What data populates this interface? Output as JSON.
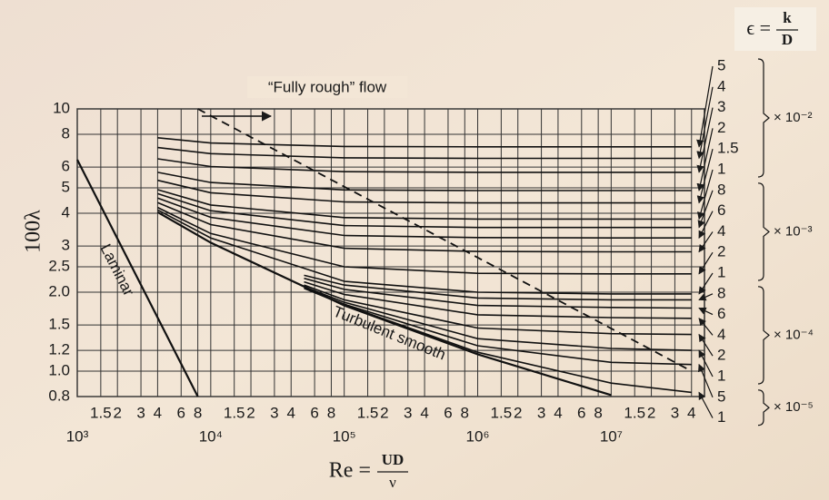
{
  "chart_data": {
    "type": "line",
    "y_label": "100λ",
    "x_label": {
      "lhs": "Re =",
      "num": "UD",
      "den": "ν"
    },
    "epsilon_label": {
      "lhs": "ϵ =",
      "num": "k",
      "den": "D"
    },
    "xscale": "log",
    "yscale": "log",
    "grid": true,
    "xlim": [
      1000,
      50000000
    ],
    "ylim": [
      0.8,
      10
    ],
    "yticks": [
      0.8,
      {
        "value": 1,
        "label": "1.0"
      },
      1.2,
      1.5,
      {
        "value": 2,
        "label": "2.0"
      },
      2.5,
      3,
      4,
      5,
      6,
      8,
      10
    ],
    "xticks": [
      {
        "value": 1000,
        "label": "10³"
      },
      {
        "value": 1500,
        "label": "1.5"
      },
      {
        "value": 2000,
        "label": "2"
      },
      {
        "value": 3000,
        "label": "3"
      },
      {
        "value": 4000,
        "label": "4"
      },
      {
        "value": 6000,
        "label": "6"
      },
      {
        "value": 8000,
        "label": "8"
      },
      {
        "value": 10000,
        "label": "10⁴"
      },
      {
        "value": 15000,
        "label": "1.5"
      },
      {
        "value": 20000,
        "label": "2"
      },
      {
        "value": 30000,
        "label": "3"
      },
      {
        "value": 40000,
        "label": "4"
      },
      {
        "value": 60000,
        "label": "6"
      },
      {
        "value": 80000,
        "label": "8"
      },
      {
        "value": 100000,
        "label": "10⁵"
      },
      {
        "value": 150000,
        "label": "1.5"
      },
      {
        "value": 200000,
        "label": "2"
      },
      {
        "value": 300000,
        "label": "3"
      },
      {
        "value": 400000,
        "label": "4"
      },
      {
        "value": 600000,
        "label": "6"
      },
      {
        "value": 800000,
        "label": "8"
      },
      {
        "value": 1000000,
        "label": "10⁶"
      },
      {
        "value": 1500000,
        "label": "1.5"
      },
      {
        "value": 2000000,
        "label": "2"
      },
      {
        "value": 3000000,
        "label": "3"
      },
      {
        "value": 4000000,
        "label": "4"
      },
      {
        "value": 6000000,
        "label": "6"
      },
      {
        "value": 8000000,
        "label": "8"
      },
      {
        "value": 10000000,
        "label": "10⁷"
      },
      {
        "value": 15000000,
        "label": "1.5"
      },
      {
        "value": 20000000,
        "label": "2"
      },
      {
        "value": 30000000,
        "label": "3"
      },
      {
        "value": 40000000,
        "label": "4"
      }
    ],
    "laminar": {
      "label": "Laminar",
      "x": [
        1000,
        8000
      ],
      "values": [
        6.4,
        0.8
      ]
    },
    "smooth": {
      "label": "Turbulent smooth",
      "x": [
        4000,
        10000,
        100000,
        1000000,
        10000000
      ],
      "values": [
        4.04,
        3.09,
        1.78,
        1.16,
        0.81
      ]
    },
    "rough_boundary": {
      "label": "“Fully rough” flow",
      "x": [
        8000,
        40000000
      ],
      "values": [
        10,
        1.0
      ]
    },
    "groups": [
      {
        "scale": "× 10⁻²",
        "x": [
          4000,
          10000,
          100000,
          1000000,
          10000000,
          40000000
        ],
        "series": [
          {
            "name": "5",
            "values": [
              7.76,
              7.41,
              7.19,
              7.17,
              7.17,
              7.17
            ]
          },
          {
            "name": "4",
            "values": [
              7.12,
              6.75,
              6.51,
              6.48,
              6.48,
              6.48
            ]
          },
          {
            "name": "3",
            "values": [
              6.45,
              6.03,
              5.76,
              5.73,
              5.73,
              5.73
            ]
          },
          {
            "name": "2",
            "values": [
              5.73,
              5.24,
              4.91,
              4.88,
              4.88,
              4.88
            ]
          },
          {
            "name": "1.5",
            "values": [
              5.34,
              4.79,
              4.42,
              4.38,
              4.38,
              4.38
            ]
          },
          {
            "name": "1",
            "values": [
              4.92,
              4.3,
              3.85,
              3.8,
              3.8,
              3.8
            ]
          }
        ]
      },
      {
        "scale": "× 10⁻³",
        "x": [
          4000,
          10000,
          100000,
          1000000,
          10000000,
          40000000
        ],
        "series": [
          {
            "name": "8",
            "values": [
              4.75,
              4.09,
              3.59,
              3.53,
              3.53,
              3.53
            ]
          },
          {
            "name": "6",
            "values": [
              4.57,
              3.86,
              3.29,
              3.23,
              3.22,
              3.22
            ]
          },
          {
            "name": "4",
            "values": [
              4.39,
              3.62,
              2.94,
              2.86,
              2.85,
              2.85
            ]
          },
          {
            "name": "2",
            "values": [
              4.21,
              3.35,
              2.5,
              2.36,
              2.35,
              2.35
            ]
          },
          {
            "name": "1",
            "values": [
              4.12,
              3.22,
              2.2,
              2.0,
              1.97,
              1.97
            ]
          }
        ]
      },
      {
        "scale": "× 10⁻⁴",
        "x": [
          50000,
          100000,
          1000000,
          10000000,
          40000000
        ],
        "series": [
          {
            "name": "8",
            "values": [
              2.32,
              2.13,
              1.9,
              1.87,
              1.87
            ]
          },
          {
            "name": "6",
            "values": [
              2.26,
              2.05,
              1.78,
              1.75,
              1.74
            ]
          },
          {
            "name": "4",
            "values": [
              2.19,
              1.96,
              1.64,
              1.6,
              1.59
            ]
          },
          {
            "name": "2",
            "values": [
              2.13,
              1.87,
              1.46,
              1.39,
              1.38
            ]
          },
          {
            "name": "1",
            "values": [
              2.1,
              1.83,
              1.33,
              1.22,
              1.2
            ]
          }
        ]
      },
      {
        "scale": "× 10⁻⁵",
        "x": [
          50000,
          100000,
          1000000,
          10000000,
          40000000
        ],
        "series": [
          {
            "name": "5",
            "values": [
              2.08,
              1.8,
              1.25,
              1.08,
              1.06
            ]
          },
          {
            "name": "1",
            "values": [
              2.07,
              1.79,
              1.18,
              0.9,
              0.83
            ]
          }
        ]
      }
    ]
  }
}
